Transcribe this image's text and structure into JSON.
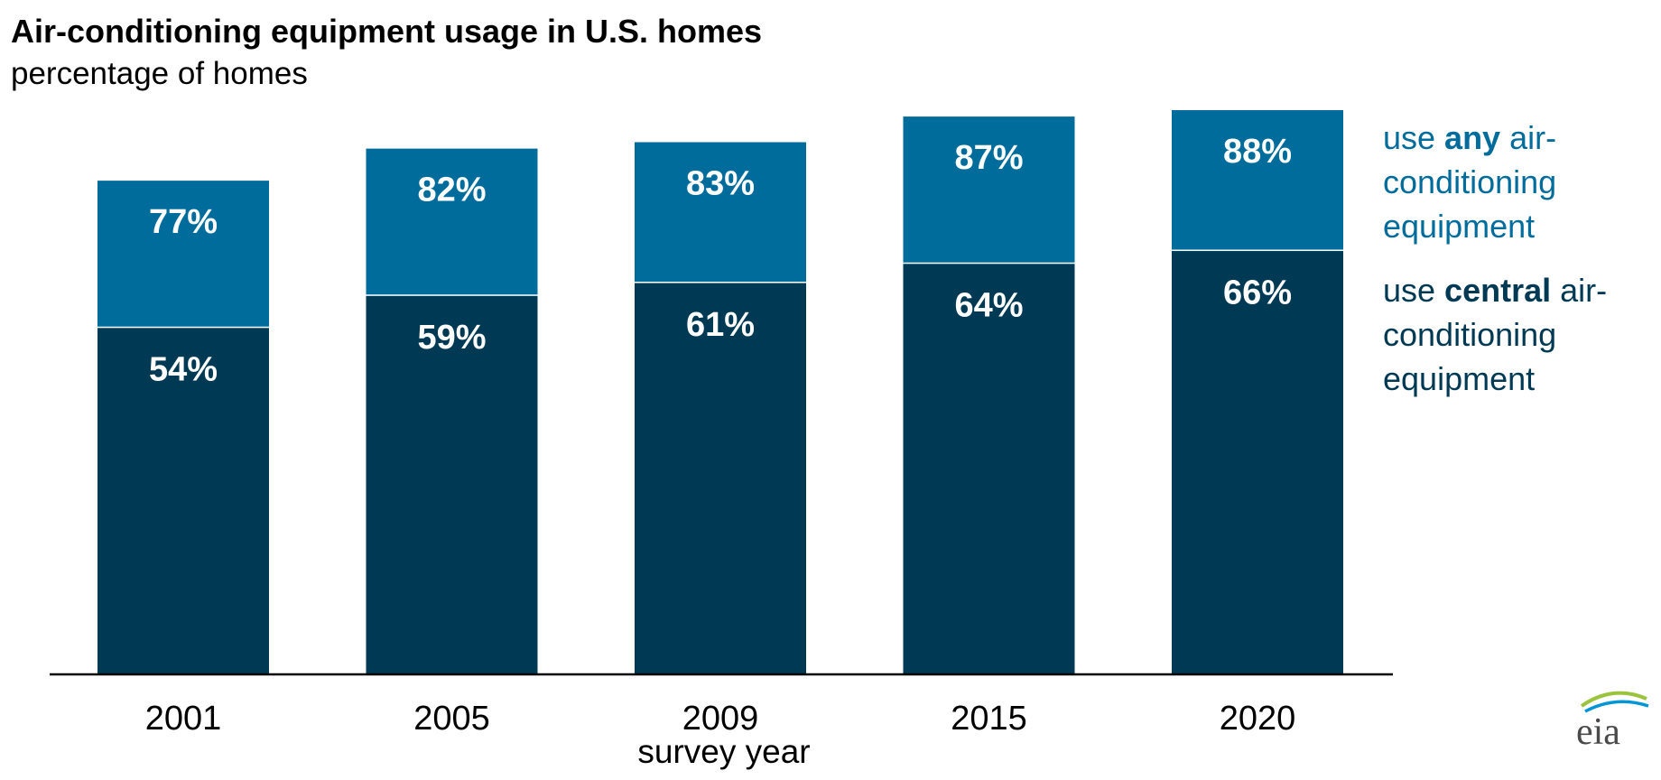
{
  "chart_data": {
    "type": "bar",
    "stacked": false,
    "overlapping": true,
    "title": "Air-conditioning equipment usage in U.S. homes",
    "subtitle": "percentage of homes",
    "xlabel": "survey year",
    "ylabel": "",
    "ylim": [
      0,
      100
    ],
    "categories": [
      "2001",
      "2005",
      "2009",
      "2015",
      "2020"
    ],
    "series": [
      {
        "name": "use any air-conditioning equipment",
        "legend_parts": [
          "use ",
          "any",
          " air-conditioning equipment"
        ],
        "color": "#006c9c",
        "values": [
          77,
          82,
          83,
          87,
          88
        ],
        "labels": [
          "77%",
          "82%",
          "83%",
          "87%",
          "88%"
        ]
      },
      {
        "name": "use central air-conditioning equipment",
        "legend_parts": [
          "use ",
          "central",
          " air-conditioning equipment"
        ],
        "color": "#003953",
        "values": [
          54,
          59,
          61,
          64,
          66
        ],
        "labels": [
          "54%",
          "59%",
          "61%",
          "64%",
          "66%"
        ]
      }
    ],
    "grid": false,
    "legend_position": "right"
  },
  "branding": {
    "logo": "eia",
    "colors": {
      "top_arc": "#9bc33d",
      "mid_arc": "#0096d6"
    }
  }
}
